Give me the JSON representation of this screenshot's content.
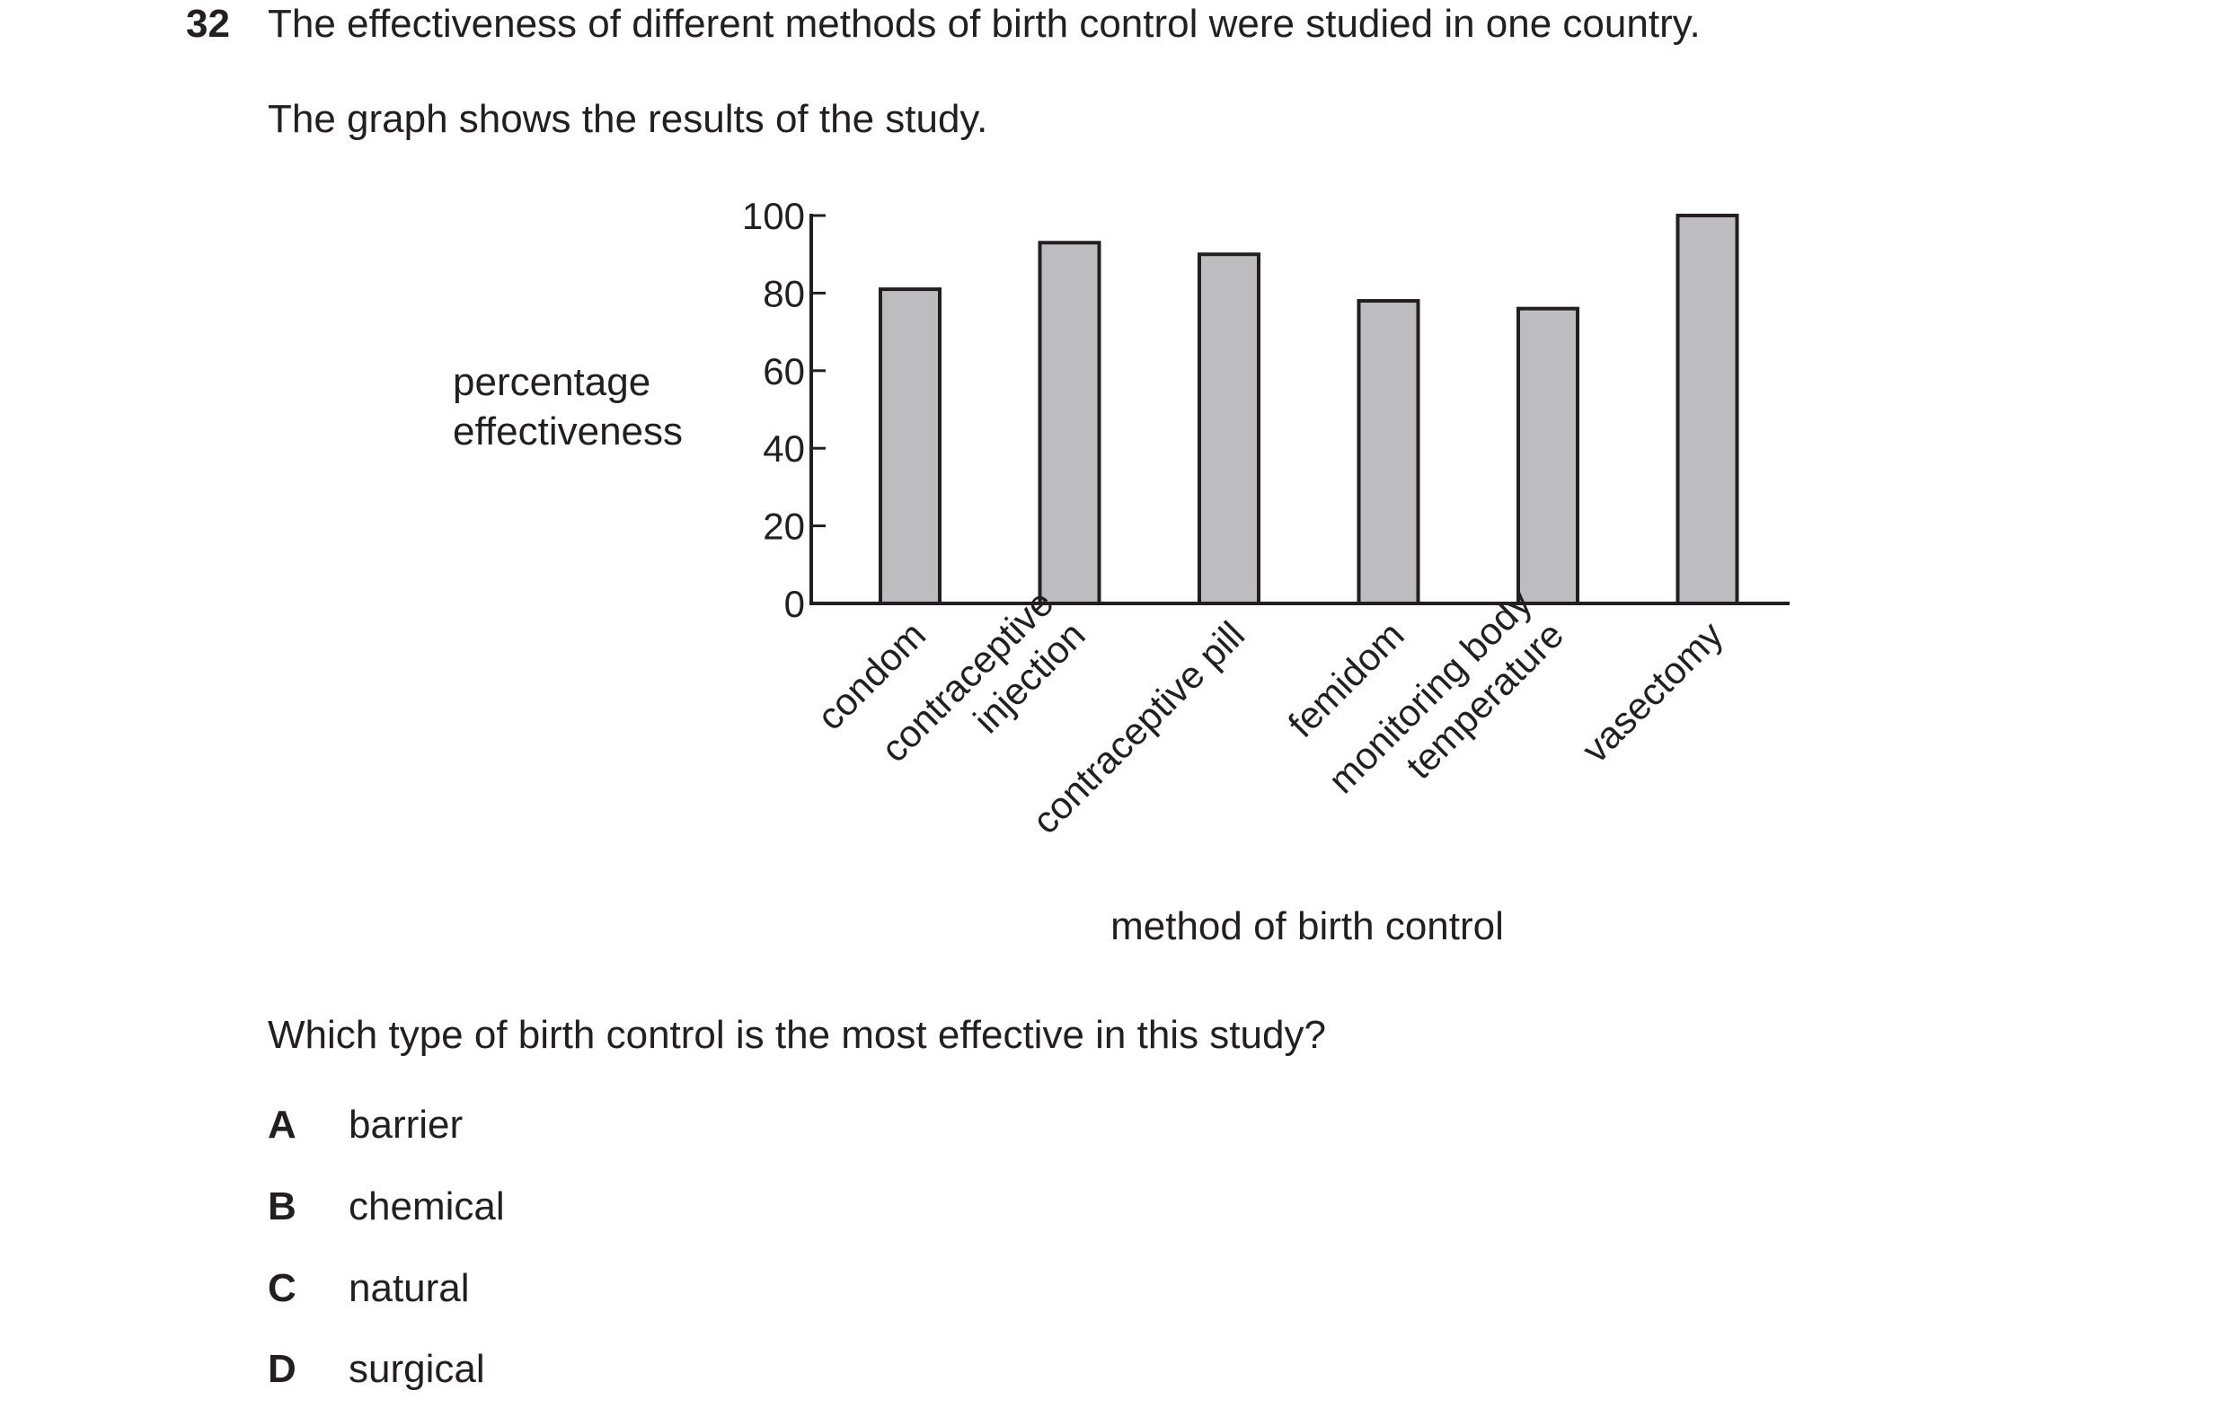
{
  "question": {
    "number": "32",
    "stem": "The effectiveness of different methods of birth control were studied in one country.",
    "subtext": "The graph shows the results of the study.",
    "prompt": "Which type of birth control is the most effective in this study?",
    "options": [
      {
        "letter": "A",
        "text": "barrier"
      },
      {
        "letter": "B",
        "text": "chemical"
      },
      {
        "letter": "C",
        "text": "natural"
      },
      {
        "letter": "D",
        "text": "surgical"
      }
    ]
  },
  "chart_data": {
    "type": "bar",
    "categories": [
      [
        "condom"
      ],
      [
        "contraceptive",
        "injection"
      ],
      [
        "contraceptive pill"
      ],
      [
        "femidom"
      ],
      [
        "monitoring body",
        "temperature"
      ],
      [
        "vasectomy"
      ]
    ],
    "values": [
      81,
      93,
      90,
      78,
      76,
      100
    ],
    "ylabel": [
      "percentage",
      "effectiveness"
    ],
    "xlabel": "method of birth control",
    "ylim": [
      0,
      100
    ],
    "yticks": [
      "0",
      "20",
      "40",
      "60",
      "80",
      "100"
    ],
    "bar_color": "#bdbdbf",
    "grid": false
  }
}
